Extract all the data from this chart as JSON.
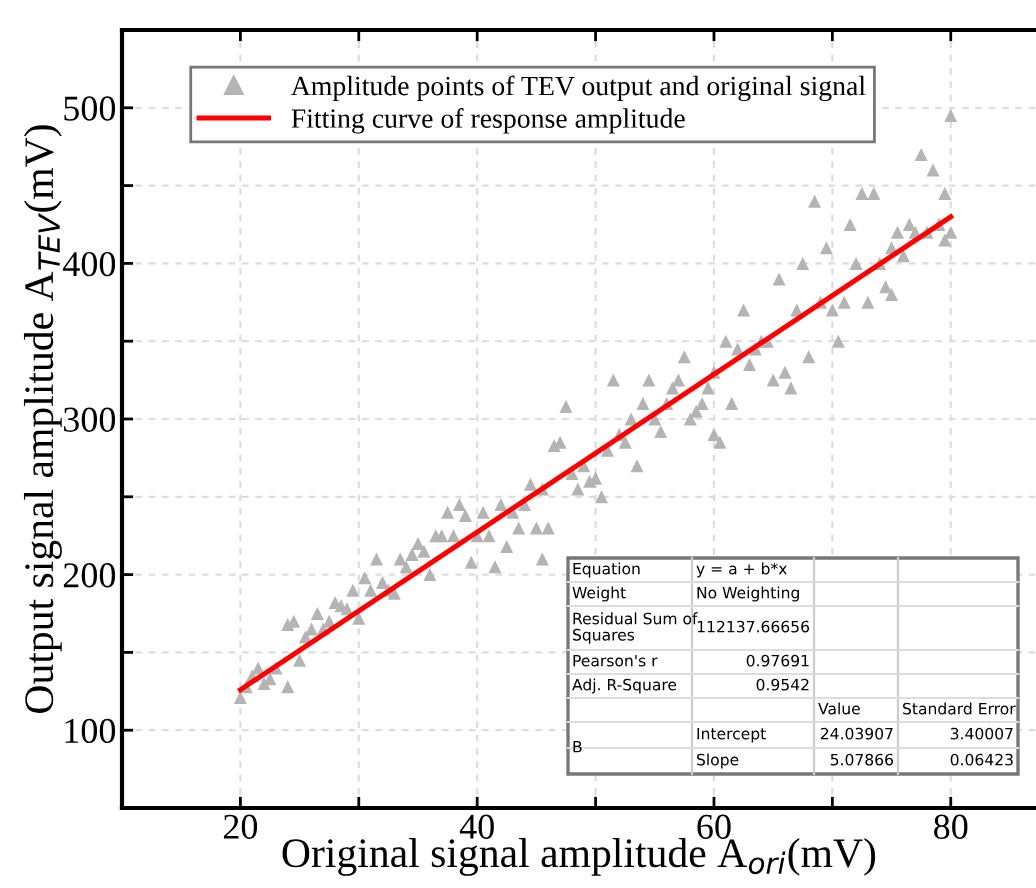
{
  "chart_data": {
    "type": "scatter",
    "xlabel": "Original signal amplitude A$_{ori}$(mV)",
    "ylabel": "Output signal amplitude A$_{TEV}$(mV)",
    "xlim": [
      10,
      87.2
    ],
    "ylim": [
      50,
      550
    ],
    "xticks": [
      20,
      {
        "value": 30,
        "label": null
      },
      40,
      {
        "value": 50,
        "label": null
      },
      60,
      {
        "value": 70,
        "label": null
      },
      80
    ],
    "yticks": [
      100,
      {
        "value": 150,
        "label": null
      },
      200,
      {
        "value": 250,
        "label": null
      },
      300,
      {
        "value": 350,
        "label": null
      },
      400,
      {
        "value": 450,
        "label": null
      },
      500
    ],
    "grid": true,
    "legend": "top left",
    "series": [
      {
        "name": "Amplitude points of TEV output and original signal",
        "marker": "triangle",
        "color": "#b4b4b4",
        "x": [
          20,
          20.5,
          21,
          21.5,
          22,
          22.5,
          23,
          24,
          24.5,
          25,
          25.5,
          26,
          26.5,
          27,
          27.5,
          28,
          28.5,
          29,
          29.5,
          30,
          30.5,
          31,
          31.5,
          32,
          32.5,
          33,
          33.5,
          34,
          34.5,
          35,
          35.5,
          36,
          36.5,
          37,
          37.5,
          38,
          38.5,
          39,
          39.5,
          40,
          40.5,
          41,
          41.5,
          42,
          42.5,
          43,
          43.5,
          44,
          44.5,
          45,
          45.5,
          46,
          46.5,
          47,
          47.5,
          48,
          48.5,
          49,
          49.5,
          50,
          50.5,
          51,
          51.5,
          52,
          52.5,
          53,
          53.5,
          54,
          54.5,
          55,
          55.5,
          56,
          56.5,
          57,
          57.5,
          58,
          58.5,
          59,
          59.5,
          60,
          60.5,
          61,
          61.5,
          62,
          62.5,
          63,
          63.5,
          64,
          64.5,
          65,
          65.5,
          66,
          66.5,
          67,
          67.5,
          68,
          68.5,
          69,
          69.5,
          70,
          70.5,
          71,
          71.5,
          72,
          72.5,
          73,
          73.5,
          74,
          74.5,
          75,
          75.5,
          76,
          76.5,
          77,
          77.5,
          78,
          78.5,
          79,
          79.5,
          80,
          80,
          24,
          45.5,
          60,
          75,
          79.5
        ],
        "values": [
          121,
          128,
          135,
          140,
          130,
          133,
          140,
          168,
          170,
          145,
          160,
          165,
          175,
          165,
          170,
          182,
          180,
          178,
          190,
          172,
          198,
          190,
          210,
          195,
          190,
          188,
          210,
          205,
          213,
          220,
          215,
          200,
          225,
          225,
          240,
          225,
          245,
          238,
          208,
          225,
          240,
          225,
          205,
          245,
          218,
          240,
          230,
          245,
          258,
          230,
          210,
          230,
          283,
          285,
          308,
          265,
          255,
          270,
          260,
          262,
          250,
          280,
          325,
          290,
          285,
          300,
          270,
          310,
          325,
          300,
          292,
          310,
          320,
          325,
          340,
          300,
          305,
          310,
          320,
          330,
          285,
          350,
          310,
          345,
          370,
          335,
          345,
          350,
          350,
          325,
          390,
          330,
          320,
          370,
          400,
          340,
          440,
          375,
          410,
          370,
          350,
          375,
          425,
          400,
          445,
          375,
          445,
          400,
          385,
          380,
          420,
          405,
          425,
          420,
          470,
          420,
          460,
          425,
          445,
          420,
          495,
          128,
          255,
          290,
          410,
          415
        ]
      },
      {
        "name": "Fitting curve of response amplitude",
        "type": "line",
        "marker": "none",
        "line_style": "solid",
        "color": "#ff0000",
        "x": [
          20,
          80
        ],
        "values": [
          126,
          430
        ]
      }
    ],
    "annotations": [
      "Equation",
      "y = a + b*x",
      "Weight",
      "No Weighting",
      "Residual Sum of\nSquares",
      "112137.66656",
      "Pearson's r",
      "0.97691",
      "Adj. R-Square",
      "0.9542",
      "Value",
      "Standard Error",
      "B",
      "Intercept",
      "24.03907",
      "3.40007",
      "Slope",
      "5.07866",
      "0.06423"
    ]
  }
}
